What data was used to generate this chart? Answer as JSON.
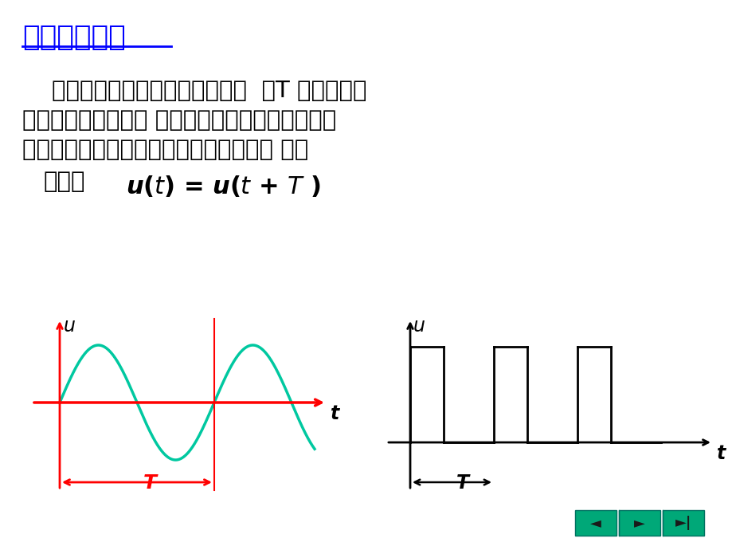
{
  "title": "交流电的概念",
  "title_color": "#0000FF",
  "bg_color": "#FFFFFF",
  "text_lines": [
    "    如果电流或电压每经过一定时间  （T ）就重复变",
    "化一次，则此种电流 、电压称为周期性交流电流或",
    "电压。如正弦波、方波、三角波、锯齿波 等。"
  ],
  "text_jimo": "记做：",
  "formula": "$\\boldsymbol{u}$($t$) = $\\boldsymbol{u}$($t$ + $T$ )",
  "sine_color": "#00C8A0",
  "axis_color_sine": "#FF0000",
  "axis_color_square": "#000000",
  "square_color": "#000000",
  "T_arrow_color_sine": "#FF0000",
  "T_arrow_color_square": "#000000",
  "nav_color": "#00A878"
}
